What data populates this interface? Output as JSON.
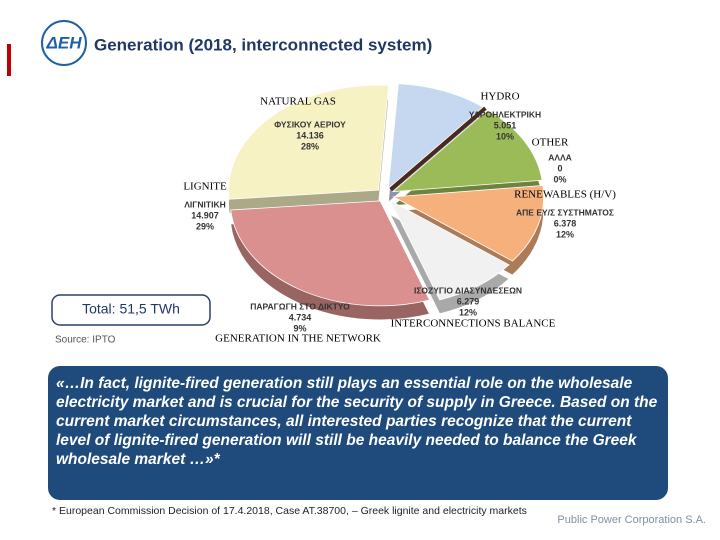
{
  "slide": {
    "logo": "ΔΕΗ",
    "title": "Generation (2018, interconnected system)",
    "total": "Total: 51,5 TWh",
    "source": "Source: IPTO",
    "quote": "«…In fact, lignite-fired generation still plays an essential role on the wholesale electricity market and is crucial for the security of supply in Greece. Based on the current market circumstances, all interested parties recognize that the current level of lignite-fired generation will still be heavily needed to balance the Greek wholesale market …»*",
    "footnote": "* European Commission Decision of 17.4.2018, Case AT.38700, – Greek lignite and electricity markets",
    "company": "Public Power Corporation S.A."
  },
  "chart_data": {
    "type": "pie",
    "categories": [
      "NATURAL GAS",
      "HYDRO",
      "OTHER",
      "RENEWABLES (H/V)",
      "INTERCONNECTIONS BALANCE",
      "GENERATION IN THE NETWORK",
      "LIGNITE"
    ],
    "greek_labels": [
      "ΦΥΣΙΚΟΥ ΑΕΡΙΟΥ",
      "ΥΔΡΟΗΛΕΚΤΡΙΚΗ",
      "ΑΛΛΑ",
      "ΑΠΕ ΕΥ/Σ ΣΥΣΤΗΜΑΤΟΣ",
      "ΙΣΟΖΥΓΙΟ ΔΙΑΣΥΝΔΕΣΕΩΝ",
      "ΠΑΡΑΓΩΓΗ ΣΤΟ ΔΙΚΤΥΟ",
      "ΛΙΓΝΙΤΙΚΗ"
    ],
    "values": [
      14136,
      5051,
      0,
      6378,
      6279,
      4734,
      14907
    ],
    "value_labels": [
      "14.136",
      "5.051",
      "0",
      "6.378",
      "6.279",
      "4.734",
      "14.907"
    ],
    "percentages": [
      28,
      10,
      0,
      12,
      12,
      9,
      29
    ],
    "percentage_labels": [
      "28%",
      "10%",
      "0%",
      "12%",
      "12%",
      "9%",
      "29%"
    ],
    "colors": [
      "#f6f2c4",
      "#c6d8ef",
      "#4a2a1a",
      "#9bbb59",
      "#f6b07c",
      "#f1f1f1",
      "#d9908e"
    ]
  }
}
